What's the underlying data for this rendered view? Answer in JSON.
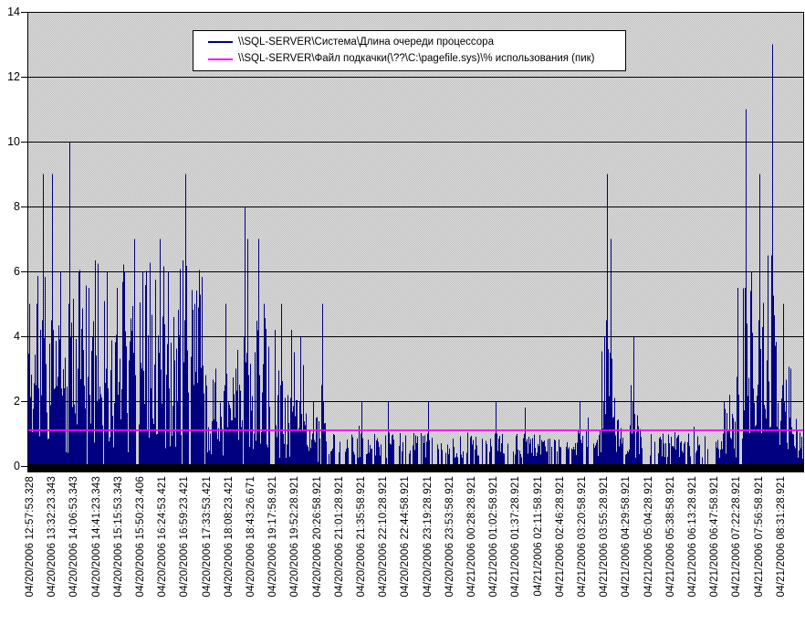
{
  "chart_data": {
    "type": "line",
    "title": "",
    "grid": true,
    "legend_position": "top-center",
    "plot_background": "dithered-gray",
    "ylim": [
      0,
      14
    ],
    "yticks": [
      0,
      2,
      4,
      6,
      8,
      10,
      12,
      14
    ],
    "x_axis_type": "time-categories",
    "xlabels": [
      "04/20/2006 12:57:53.328",
      "04/20/2006 13:32:23.343",
      "04/20/2006 14:06:53.343",
      "04/20/2006 14:41:23.343",
      "04/20/2006 15:15:53.343",
      "04/20/2006 15:50:23.406",
      "04/20/2006 16:24:53.421",
      "04/20/2006 16:59:23.421",
      "04/20/2006 17:33:53.421",
      "04/20/2006 18:08:23.421",
      "04/20/2006 18:43:26.671",
      "04/20/2006 19:17:58.921",
      "04/20/2006 19:52:28.921",
      "04/20/2006 20:26:58.921",
      "04/20/2006 21:01:28.921",
      "04/20/2006 21:35:58.921",
      "04/20/2006 22:10:28.921",
      "04/20/2006 22:44:58.921",
      "04/20/2006 23:19:28.921",
      "04/20/2006 23:53:58.921",
      "04/21/2006 00:28:28.921",
      "04/21/2006 01:02:58.921",
      "04/21/2006 01:37:28.921",
      "04/21/2006 02:11:58.921",
      "04/21/2006 02:46:28.921",
      "04/21/2006 03:20:58.921",
      "04/21/2006 03:55:28.921",
      "04/21/2006 04:29:58.921",
      "04/21/2006 05:04:28.921",
      "04/21/2006 05:38:58.921",
      "04/21/2006 06:13:28.921",
      "04/21/2006 06:47:58.921",
      "04/21/2006 07:22:28.921",
      "04/21/2006 07:56:58.921",
      "04/21/2006 08:31:28.921"
    ],
    "series": [
      {
        "name": "\\\\SQL-SERVER\\Система\\Длина очереди процессора",
        "color": "#000080",
        "representation": "per-pixel-column max envelope of a dense 15-second counter trace; columns drawn from 0 up to value",
        "seed": 11,
        "segments": [
          {
            "f0": 0.0,
            "f1": 0.232,
            "zero_p": 0.03,
            "base": [
              0.4,
              4.0
            ],
            "spike_p": 0.25,
            "spike": [
              4.0,
              6.5
            ]
          },
          {
            "f0": 0.232,
            "f1": 0.265,
            "zero_p": 0.08,
            "base": [
              0.2,
              2.0
            ],
            "spike_p": 0.12,
            "spike": [
              2.2,
              3.0
            ]
          },
          {
            "f0": 0.265,
            "f1": 0.31,
            "zero_p": 0.05,
            "base": [
              0.4,
              3.2
            ],
            "spike_p": 0.27,
            "spike": [
              3.5,
              5.0
            ]
          },
          {
            "f0": 0.31,
            "f1": 0.36,
            "zero_p": 0.07,
            "base": [
              0.2,
              2.2
            ],
            "spike_p": 0.18,
            "spike": [
              2.5,
              4.5
            ]
          },
          {
            "f0": 0.36,
            "f1": 0.385,
            "zero_p": 0.12,
            "base": [
              0.1,
              1.6
            ],
            "spike_p": 0.08,
            "spike": [
              1.8,
              2.2
            ]
          },
          {
            "f0": 0.385,
            "f1": 0.705,
            "zero_p": 0.22,
            "base": [
              0.25,
              1.05
            ],
            "spike_p": 0.02,
            "spike": [
              1.2,
              2.0
            ]
          },
          {
            "f0": 0.705,
            "f1": 0.738,
            "zero_p": 0.18,
            "base": [
              0.25,
              1.1
            ],
            "spike_p": 0.03,
            "spike": [
              1.3,
              2.0
            ]
          },
          {
            "f0": 0.738,
            "f1": 0.757,
            "zero_p": 0.05,
            "base": [
              0.4,
              2.8
            ],
            "spike_p": 0.3,
            "spike": [
              2.5,
              4.0
            ]
          },
          {
            "f0": 0.757,
            "f1": 0.79,
            "zero_p": 0.12,
            "base": [
              0.2,
              1.6
            ],
            "spike_p": 0.1,
            "spike": [
              1.8,
              2.5
            ]
          },
          {
            "f0": 0.79,
            "f1": 0.898,
            "zero_p": 0.2,
            "base": [
              0.25,
              1.05
            ],
            "spike_p": 0.015,
            "spike": [
              1.2,
              1.8
            ]
          },
          {
            "f0": 0.898,
            "f1": 0.922,
            "zero_p": 0.1,
            "base": [
              0.2,
              1.8
            ],
            "spike_p": 0.12,
            "spike": [
              2.0,
              2.5
            ]
          },
          {
            "f0": 0.922,
            "f1": 0.968,
            "zero_p": 0.06,
            "base": [
              0.3,
              2.8
            ],
            "spike_p": 0.32,
            "spike": [
              3.5,
              5.5
            ]
          },
          {
            "f0": 0.968,
            "f1": 0.985,
            "zero_p": 0.08,
            "base": [
              0.3,
              2.2
            ],
            "spike_p": 0.15,
            "spike": [
              2.5,
              3.5
            ]
          },
          {
            "f0": 0.985,
            "f1": 1.001,
            "zero_p": 0.12,
            "base": [
              0.1,
              1.6
            ],
            "spike_p": 0.06,
            "spike": [
              1.8,
              2.2
            ]
          }
        ],
        "peaks": [
          [
            0.002,
            5
          ],
          [
            0.012,
            5
          ],
          [
            0.02,
            9
          ],
          [
            0.032,
            9
          ],
          [
            0.042,
            6
          ],
          [
            0.054,
            10
          ],
          [
            0.066,
            6
          ],
          [
            0.079,
            5.5
          ],
          [
            0.102,
            6
          ],
          [
            0.115,
            5.5
          ],
          [
            0.125,
            6
          ],
          [
            0.138,
            7
          ],
          [
            0.148,
            6
          ],
          [
            0.171,
            7
          ],
          [
            0.181,
            6
          ],
          [
            0.203,
            9
          ],
          [
            0.215,
            5
          ],
          [
            0.242,
            3
          ],
          [
            0.255,
            5
          ],
          [
            0.268,
            3
          ],
          [
            0.28,
            8
          ],
          [
            0.283,
            7
          ],
          [
            0.298,
            7
          ],
          [
            0.305,
            5
          ],
          [
            0.327,
            5
          ],
          [
            0.34,
            4.2
          ],
          [
            0.352,
            4
          ],
          [
            0.368,
            2
          ],
          [
            0.38,
            5
          ],
          [
            0.43,
            2
          ],
          [
            0.517,
            2
          ],
          [
            0.604,
            2
          ],
          [
            0.641,
            1.8
          ],
          [
            0.712,
            2
          ],
          [
            0.7435,
            4
          ],
          [
            0.747,
            9
          ],
          [
            0.752,
            7
          ],
          [
            0.778,
            2.5
          ],
          [
            0.781,
            4
          ],
          [
            0.898,
            2
          ],
          [
            0.905,
            2.2
          ],
          [
            0.915,
            5.5
          ],
          [
            0.926,
            11
          ],
          [
            0.933,
            6
          ],
          [
            0.944,
            9
          ],
          [
            0.954,
            6.5
          ],
          [
            0.96,
            13
          ],
          [
            0.974,
            5
          ],
          [
            0.983,
            3
          ]
        ]
      },
      {
        "name": "\\\\SQL-SERVER\\Файл подкачки(\\??\\C:\\pagefile.sys)\\% использования (пик)",
        "color": "#ff00ff",
        "constant_value": 1.1
      }
    ]
  },
  "colors": {
    "background": "#ffffff",
    "plot_dither_dark": "#bfbfbf",
    "plot_dither_light": "#dedede",
    "gridline": "#000000",
    "axis": "#000000",
    "cpu_queue_series": "#000080",
    "pagefile_series": "#ff00ff"
  }
}
